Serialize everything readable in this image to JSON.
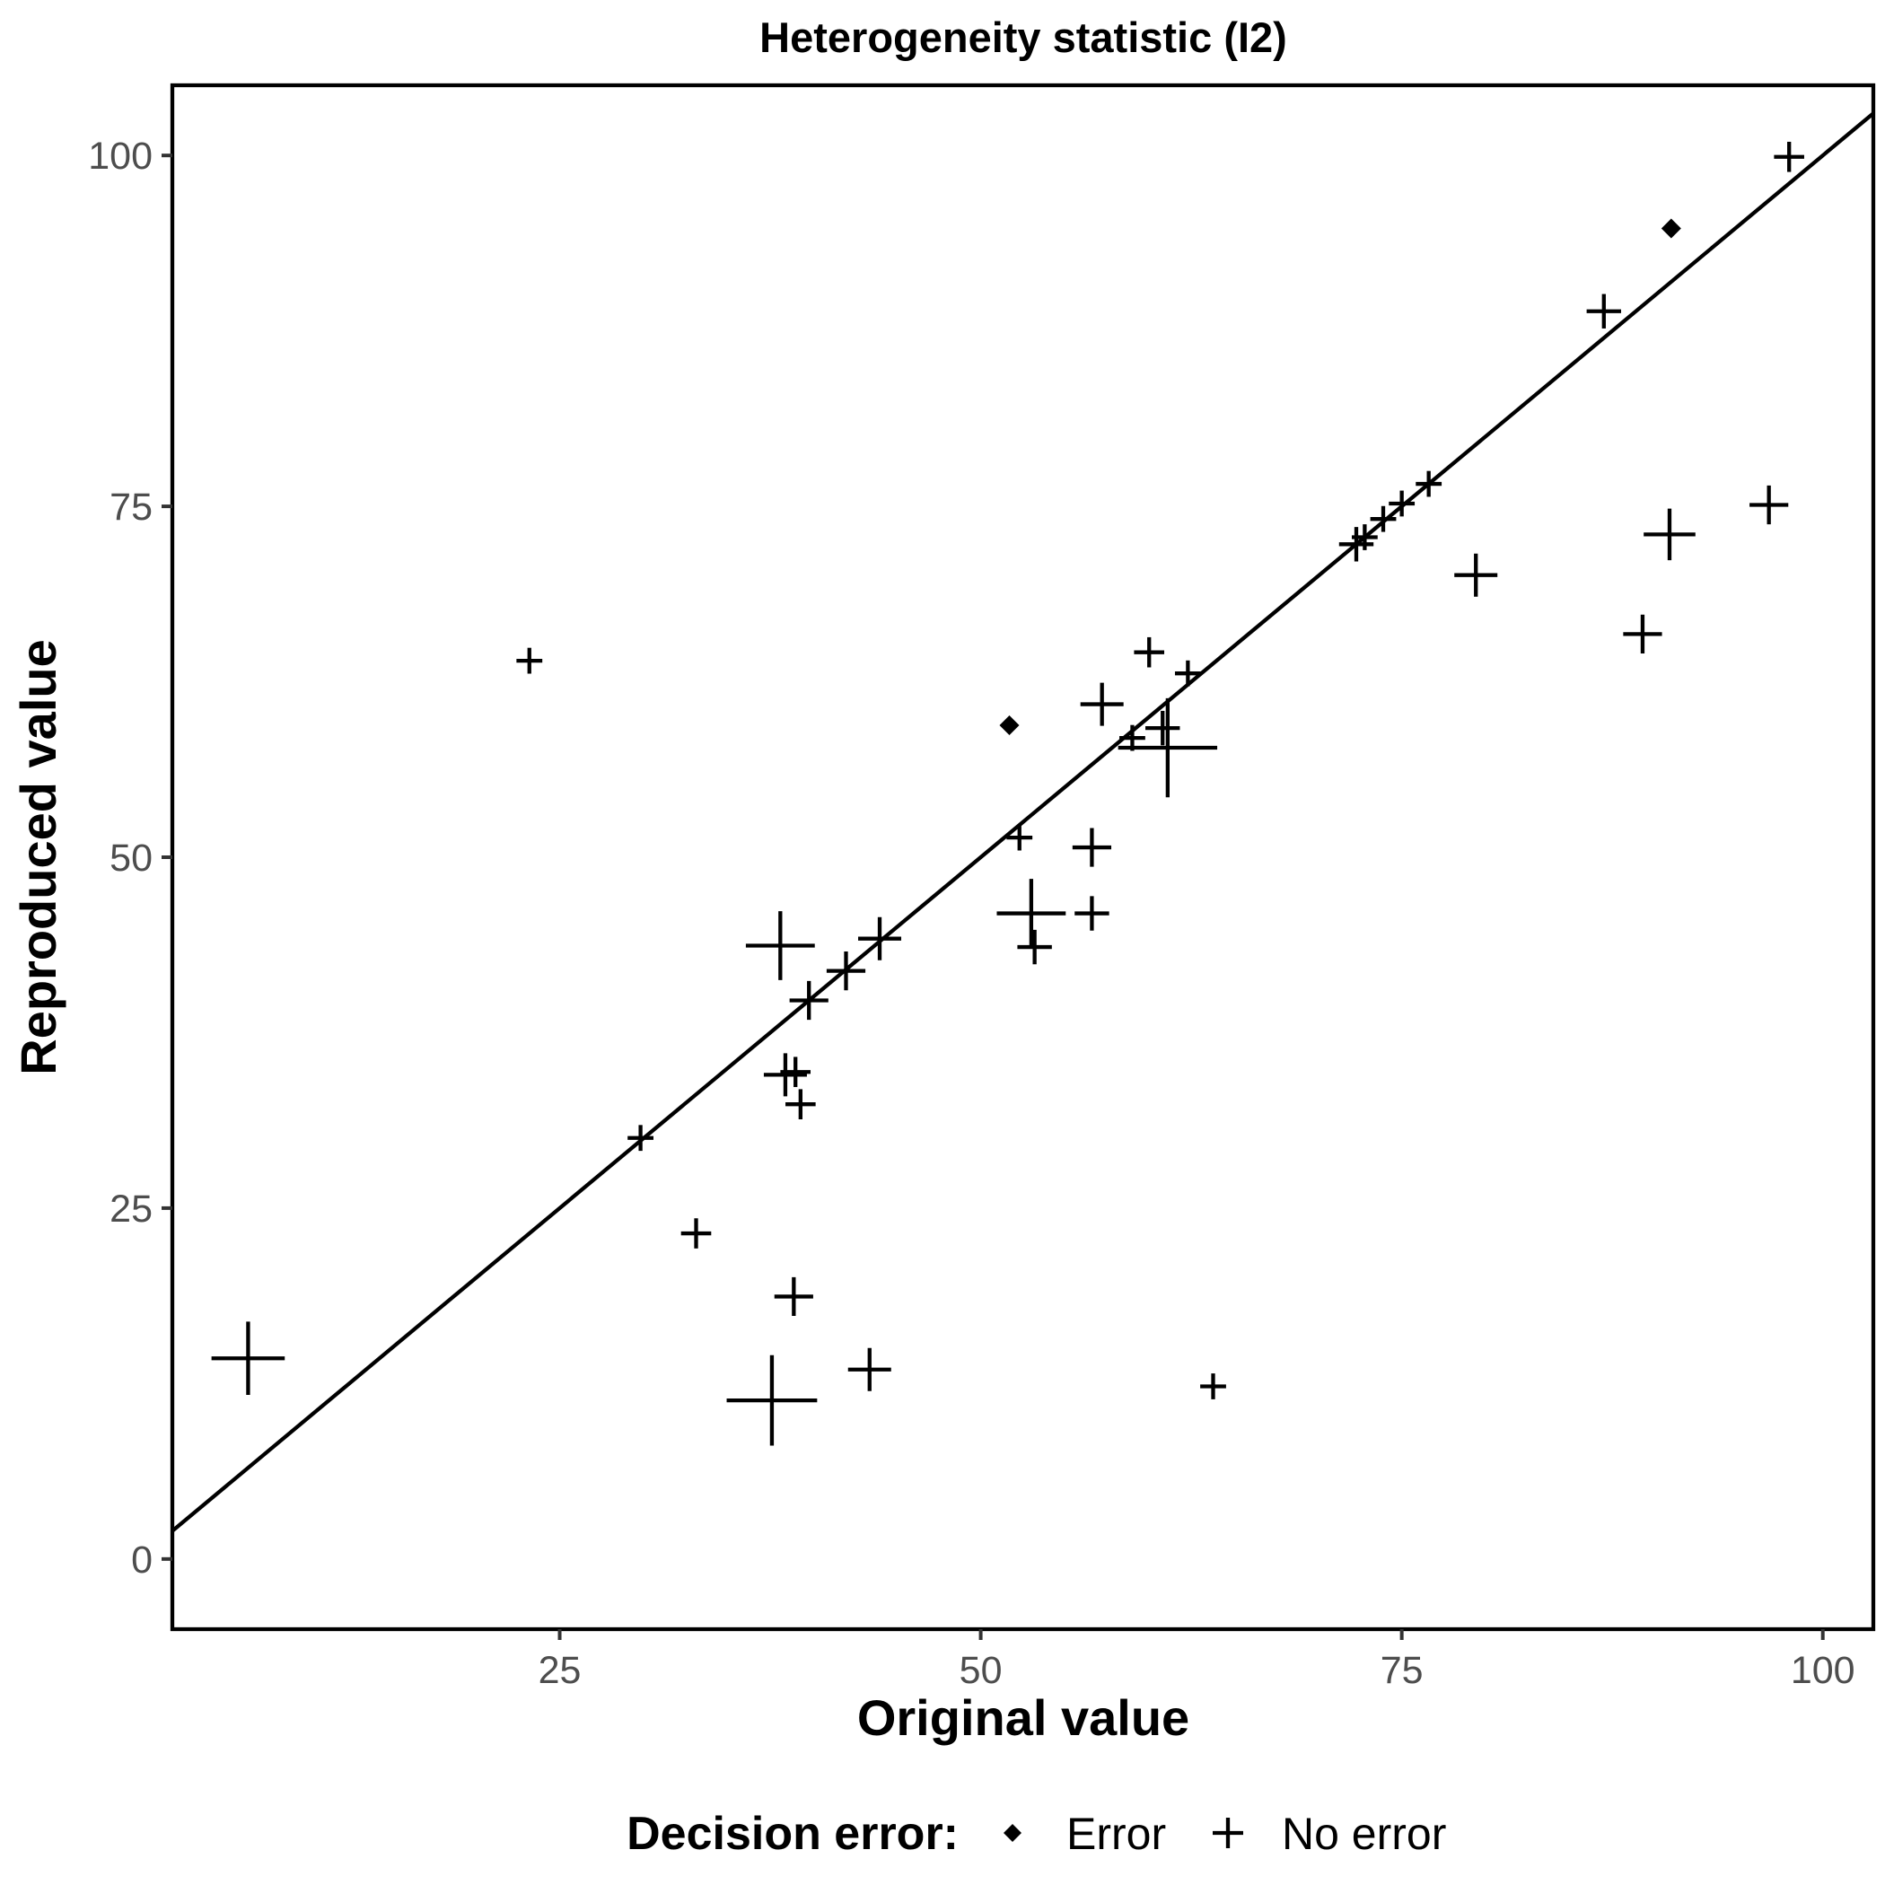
{
  "chart_data": {
    "type": "scatter",
    "title": "Heterogeneity statistic (I2)",
    "xlabel": "Original value",
    "ylabel": "Reproduced value",
    "xlim": [
      2,
      103
    ],
    "ylim": [
      -5,
      105
    ],
    "x_ticks": [
      25,
      50,
      75,
      100
    ],
    "y_ticks": [
      0,
      25,
      50,
      75,
      100
    ],
    "x_tick_labels": [
      "25",
      "50",
      "75",
      "100"
    ],
    "y_tick_labels": [
      "0",
      "25",
      "50",
      "75",
      "100"
    ],
    "grid": false,
    "reference_line": {
      "type": "identity",
      "slope": 1,
      "intercept": 0
    },
    "legend": {
      "title": "Decision error:",
      "placement": "bottom",
      "entries": [
        {
          "label": "Error",
          "marker": "diamond"
        },
        {
          "label": "No error",
          "marker": "plus"
        }
      ]
    },
    "series": [
      {
        "name": "Error",
        "marker": "diamond",
        "points": [
          {
            "x": 51.7,
            "y": 59.4
          },
          {
            "x": 91.0,
            "y": 94.8
          }
        ]
      },
      {
        "name": "No error",
        "marker": "plus",
        "points": [
          {
            "x": 6.5,
            "y": 14.3,
            "size": 3.4
          },
          {
            "x": 23.2,
            "y": 64.0,
            "size": 1.2
          },
          {
            "x": 29.8,
            "y": 30.0,
            "size": 1.2
          },
          {
            "x": 33.1,
            "y": 23.2,
            "size": 1.4
          },
          {
            "x": 37.6,
            "y": 11.3,
            "size": 4.2
          },
          {
            "x": 38.1,
            "y": 43.7,
            "size": 3.2
          },
          {
            "x": 38.4,
            "y": 34.5,
            "size": 2.0
          },
          {
            "x": 39.0,
            "y": 34.7,
            "size": 1.4
          },
          {
            "x": 39.3,
            "y": 32.4,
            "size": 1.4
          },
          {
            "x": 38.9,
            "y": 18.7,
            "size": 1.8
          },
          {
            "x": 39.8,
            "y": 39.8,
            "size": 1.8
          },
          {
            "x": 42.0,
            "y": 41.9,
            "size": 1.8
          },
          {
            "x": 43.4,
            "y": 13.5,
            "size": 2.0
          },
          {
            "x": 44.0,
            "y": 44.2,
            "size": 2.0
          },
          {
            "x": 52.3,
            "y": 51.4,
            "size": 1.2
          },
          {
            "x": 53.0,
            "y": 46.0,
            "size": 3.2
          },
          {
            "x": 53.2,
            "y": 43.6,
            "size": 1.6
          },
          {
            "x": 56.6,
            "y": 50.7,
            "size": 1.8
          },
          {
            "x": 56.6,
            "y": 46.0,
            "size": 1.6
          },
          {
            "x": 57.2,
            "y": 60.9,
            "size": 2.0
          },
          {
            "x": 59.0,
            "y": 58.5,
            "size": 1.2
          },
          {
            "x": 60.0,
            "y": 64.6,
            "size": 1.4
          },
          {
            "x": 60.8,
            "y": 59.2,
            "size": 1.6
          },
          {
            "x": 61.1,
            "y": 57.8,
            "size": 4.6
          },
          {
            "x": 62.3,
            "y": 63.1,
            "size": 1.2
          },
          {
            "x": 63.8,
            "y": 12.3,
            "size": 1.2
          },
          {
            "x": 72.3,
            "y": 72.3,
            "size": 1.6
          },
          {
            "x": 72.8,
            "y": 72.8,
            "size": 1.2
          },
          {
            "x": 73.9,
            "y": 74.1,
            "size": 1.2
          },
          {
            "x": 75.0,
            "y": 75.2,
            "size": 1.2
          },
          {
            "x": 76.6,
            "y": 76.6,
            "size": 1.2
          },
          {
            "x": 79.4,
            "y": 70.1,
            "size": 2.0
          },
          {
            "x": 87.0,
            "y": 88.9,
            "size": 1.6
          },
          {
            "x": 89.3,
            "y": 65.9,
            "size": 1.8
          },
          {
            "x": 90.9,
            "y": 73.0,
            "size": 2.4
          },
          {
            "x": 96.8,
            "y": 75.1,
            "size": 1.8
          },
          {
            "x": 98.0,
            "y": 99.9,
            "size": 1.4
          }
        ]
      }
    ]
  }
}
